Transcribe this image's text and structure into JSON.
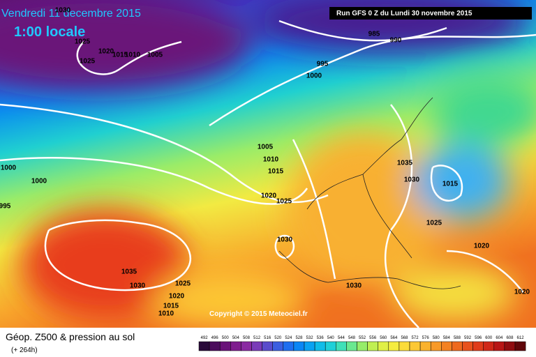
{
  "header": {
    "date": "Vendredi 11 decembre 2015",
    "time": "1:00 locale",
    "run": "Run GFS 0 Z du Lundi 30 novembre 2015"
  },
  "copyright": "Copyright © 2015 Meteociel.fr",
  "footer": {
    "title": "Géop. Z500 & pression au sol",
    "lead": "(+ 264h)"
  },
  "isobar_labels": [
    "1030",
    "1025",
    "1020",
    "1015",
    "1010",
    "1005",
    "1025",
    "985",
    "990",
    "995",
    "1000",
    "1005",
    "1010",
    "1015",
    "1020",
    "1025",
    "1000",
    "1000",
    "995",
    "1035",
    "1030",
    "1015",
    "1025",
    "1020",
    "1030",
    "1035",
    "1030",
    "1025",
    "1020",
    "1015",
    "1010",
    "1030",
    "1020"
  ],
  "legend": {
    "labels": [
      492,
      496,
      500,
      504,
      508,
      512,
      516,
      520,
      524,
      528,
      532,
      536,
      540,
      544,
      548,
      552,
      556,
      560,
      564,
      568,
      572,
      576,
      580,
      584,
      588,
      592,
      596,
      600,
      604,
      608,
      612
    ],
    "colors": [
      "#2a0a3a",
      "#4b0b5c",
      "#6a1279",
      "#7f1c8e",
      "#8a2aa2",
      "#7a3bb8",
      "#5a4ccc",
      "#3c5fe0",
      "#1f6ff0",
      "#0a86f5",
      "#0aa2f2",
      "#10bce8",
      "#1fd0d8",
      "#3fe0b8",
      "#6ae890",
      "#96ec6a",
      "#c0ef52",
      "#e0f046",
      "#f5ec40",
      "#fcdc3a",
      "#fcc834",
      "#fab22e",
      "#f89a28",
      "#f48222",
      "#ee6a1e",
      "#e8521c",
      "#e03c1a",
      "#d02818",
      "#b81616",
      "#900c10",
      "#60060a"
    ]
  }
}
